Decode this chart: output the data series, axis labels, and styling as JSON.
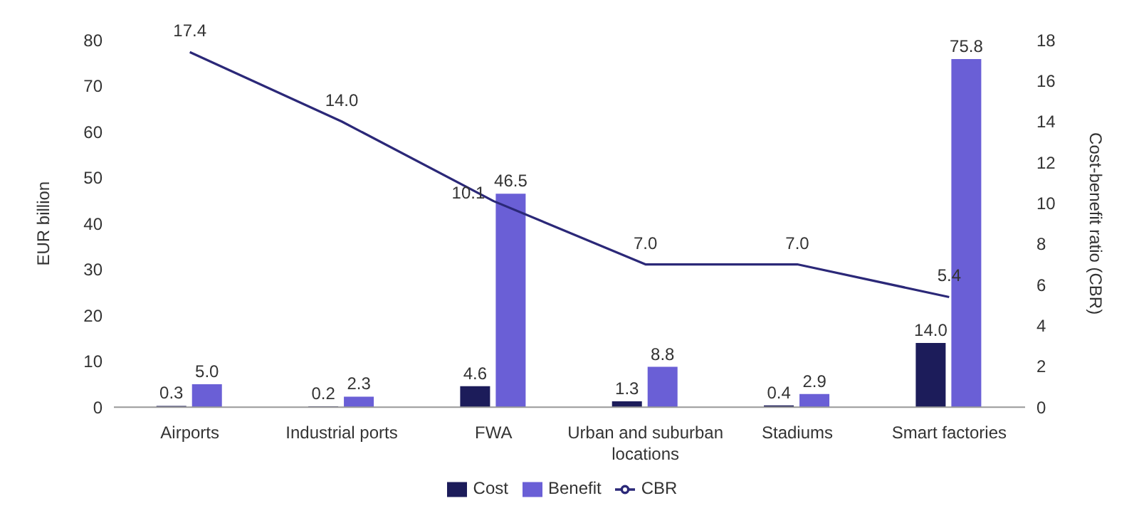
{
  "chart_data": {
    "type": "bar",
    "categories": [
      "Airports",
      "Industrial ports",
      "FWA",
      "Urban and suburban locations",
      "Stadiums",
      "Smart factories"
    ],
    "series": [
      {
        "name": "Cost",
        "color": "#1c1c5a",
        "values": [
          0.3,
          0.2,
          4.6,
          1.3,
          0.4,
          14.0
        ],
        "value_labels": [
          "0.3",
          "0.2",
          "4.6",
          "1.3",
          "0.4",
          "14.0"
        ]
      },
      {
        "name": "Benefit",
        "color": "#6a5fd6",
        "values": [
          5.0,
          2.3,
          46.5,
          8.8,
          2.9,
          75.8
        ],
        "value_labels": [
          "5.0",
          "2.3",
          "46.5",
          "8.8",
          "2.9",
          "75.8"
        ]
      },
      {
        "name": "CBR",
        "type": "line",
        "axis": "y2",
        "color": "#2b2878",
        "values": [
          17.4,
          14.0,
          10.1,
          7.0,
          7.0,
          5.4
        ],
        "value_labels": [
          "17.4",
          "14.0",
          "10.1",
          "7.0",
          "7.0",
          "5.4"
        ]
      }
    ],
    "ylabel": "EUR billion",
    "y2label": "Cost-benefit ratio (CBR)",
    "ylim": [
      0,
      80
    ],
    "yticks": [
      0,
      10,
      20,
      30,
      40,
      50,
      60,
      70,
      80
    ],
    "y2lim": [
      0,
      18
    ],
    "y2ticks": [
      0,
      2,
      4,
      6,
      8,
      10,
      12,
      14,
      16,
      18
    ],
    "grid": false,
    "legend": "bottom",
    "marker": "none",
    "line_style": "solid"
  }
}
